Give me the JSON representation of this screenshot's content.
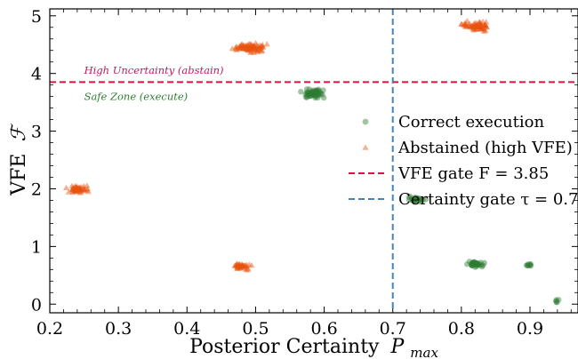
{
  "chart_data": {
    "type": "scatter",
    "xlabel": "Posterior Certainty",
    "xlabel_symbol": "P",
    "xlabel_subscript": "max",
    "ylabel": "VFE",
    "ylabel_symbol": "ℱ",
    "xlim": [
      0.2,
      0.97
    ],
    "ylim": [
      -0.15,
      5.12
    ],
    "x_ticks": [
      0.2,
      0.3,
      0.4,
      0.5,
      0.6,
      0.7,
      0.8,
      0.9
    ],
    "x_tick_labels": [
      "0.2",
      "0.3",
      "0.4",
      "0.5",
      "0.6",
      "0.7",
      "0.8",
      "0.9"
    ],
    "y_ticks": [
      0,
      1,
      2,
      3,
      4,
      5
    ],
    "y_tick_labels": [
      "0",
      "1",
      "2",
      "3",
      "4",
      "5"
    ],
    "grid": false,
    "legend_position": "right",
    "series": [
      {
        "name": "Correct execution",
        "marker": "circle",
        "color": "#2e7d32",
        "clusters": [
          {
            "x": 0.583,
            "y": 3.65,
            "n": 60,
            "spread_x": 0.009,
            "spread_y": 0.035
          },
          {
            "x": 0.735,
            "y": 1.82,
            "n": 25,
            "spread_x": 0.005,
            "spread_y": 0.025
          },
          {
            "x": 0.82,
            "y": 0.69,
            "n": 35,
            "spread_x": 0.006,
            "spread_y": 0.02
          },
          {
            "x": 0.9,
            "y": 0.68,
            "n": 8,
            "spread_x": 0.003,
            "spread_y": 0.015
          },
          {
            "x": 0.94,
            "y": 0.06,
            "n": 5,
            "spread_x": 0.002,
            "spread_y": 0.01
          }
        ]
      },
      {
        "name": "Abstained (high VFE)",
        "marker": "triangle",
        "color": "#e8530e",
        "clusters": [
          {
            "x": 0.24,
            "y": 2.0,
            "n": 50,
            "spread_x": 0.007,
            "spread_y": 0.03
          },
          {
            "x": 0.48,
            "y": 0.66,
            "n": 40,
            "spread_x": 0.006,
            "spread_y": 0.025
          },
          {
            "x": 0.492,
            "y": 4.45,
            "n": 80,
            "spread_x": 0.01,
            "spread_y": 0.04
          },
          {
            "x": 0.822,
            "y": 4.82,
            "n": 70,
            "spread_x": 0.009,
            "spread_y": 0.035
          }
        ]
      }
    ],
    "lines": [
      {
        "name": "VFE gate  F = 3.85",
        "orientation": "horizontal",
        "value": 3.85,
        "color": "#dc143c",
        "style": "dashed"
      },
      {
        "name": "Certainty gate  τ = 0.7",
        "orientation": "vertical",
        "value": 0.7,
        "color": "#4682b4",
        "style": "dashed"
      }
    ],
    "annotations": [
      {
        "text": "High Uncertainty  (abstain)",
        "x": 0.25,
        "y": 4.06,
        "color": "#c2185b"
      },
      {
        "text": "Safe Zone  (execute)",
        "x": 0.25,
        "y": 3.6,
        "color": "#2e7d32"
      }
    ]
  }
}
